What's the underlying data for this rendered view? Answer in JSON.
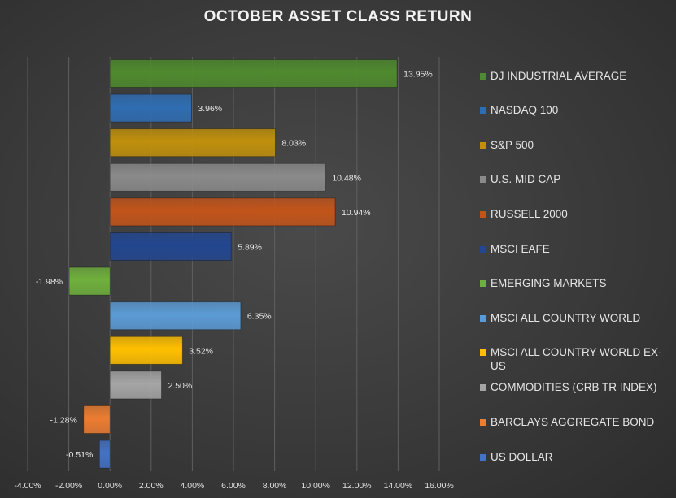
{
  "chart_data": {
    "type": "bar",
    "orientation": "horizontal",
    "title": "OCTOBER ASSET CLASS RETURN",
    "categories": [
      "DJ INDUSTRIAL AVERAGE",
      "NASDAQ 100",
      "S&P 500",
      "U.S. MID CAP",
      "RUSSELL 2000",
      "MSCI EAFE",
      "EMERGING MARKETS",
      "MSCI ALL COUNTRY WORLD",
      "MSCI ALL COUNTRY WORLD EX-US",
      "COMMODITIES (CRB TR INDEX)",
      "BARCLAYS AGGREGATE BOND",
      "US DOLLAR"
    ],
    "values": [
      13.95,
      3.96,
      8.03,
      10.48,
      10.94,
      5.89,
      -1.98,
      6.35,
      3.52,
      2.5,
      -1.28,
      -0.51
    ],
    "data_labels": [
      "13.95%",
      "3.96%",
      "8.03%",
      "10.48%",
      "10.94%",
      "5.89%",
      "-1.98%",
      "6.35%",
      "3.52%",
      "2.50%",
      "-1.28%",
      "-0.51%"
    ],
    "colors": [
      "#4f8a2e",
      "#2f6db3",
      "#c0900c",
      "#8a8a8a",
      "#c2541a",
      "#22468f",
      "#6fb03d",
      "#5b9bd5",
      "#ffc000",
      "#a5a5a5",
      "#ed7d31",
      "#4472c4"
    ],
    "xlim": [
      -4,
      16
    ],
    "x_ticks": [
      -4,
      -2,
      0,
      2,
      4,
      6,
      8,
      10,
      12,
      14,
      16
    ],
    "x_tick_labels": [
      "-4.00%",
      "-2.00%",
      "0.00%",
      "2.00%",
      "4.00%",
      "6.00%",
      "8.00%",
      "10.00%",
      "12.00%",
      "14.00%",
      "16.00%"
    ],
    "grid": true,
    "legend_position": "right"
  }
}
